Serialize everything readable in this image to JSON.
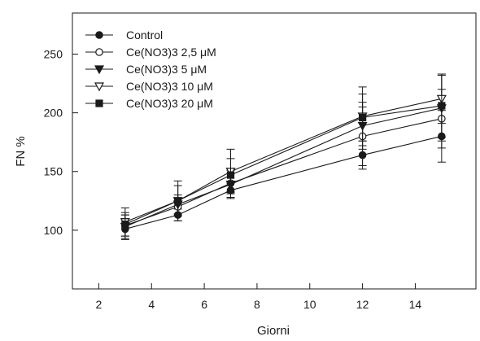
{
  "chart_data": {
    "type": "line",
    "title": "",
    "xlabel": "Giorni",
    "ylabel": "FN %",
    "xlim": [
      1,
      16.3
    ],
    "ylim": [
      50,
      285
    ],
    "xticks": [
      2,
      4,
      6,
      8,
      10,
      12,
      14
    ],
    "yticks": [
      100,
      150,
      200,
      250
    ],
    "xtick_labels": [
      "2",
      "4",
      "6",
      "8",
      "10",
      "12",
      "14"
    ],
    "ytick_labels": [
      "100",
      "150",
      "200",
      "250"
    ],
    "grid": false,
    "legend_position": "top-left",
    "x": [
      3,
      5,
      7,
      12,
      15
    ],
    "series": [
      {
        "name": "Control",
        "marker": "filled-circle",
        "values": [
          101,
          113,
          134,
          164,
          180
        ],
        "errors": [
          9,
          5,
          6,
          12,
          22
        ]
      },
      {
        "name": "Ce(NO3)3 2,5 μM",
        "marker": "open-circle",
        "values": [
          104,
          120,
          140,
          180,
          195
        ],
        "errors": [
          9,
          7,
          8,
          25,
          25
        ]
      },
      {
        "name": "Ce(NO3)3  5 μM",
        "marker": "filled-triangle-down",
        "values": [
          103,
          122,
          139,
          189,
          204
        ],
        "errors": [
          10,
          8,
          12,
          20,
          28
        ]
      },
      {
        "name": "Ce(NO3)3 10 μM",
        "marker": "open-triangle-down",
        "values": [
          107,
          125,
          150,
          197,
          212
        ],
        "errors": [
          12,
          17,
          19,
          25,
          21
        ]
      },
      {
        "name": "Ce(NO3)3 20 μM",
        "marker": "filled-square",
        "values": [
          105,
          125,
          147,
          196,
          206
        ],
        "errors": [
          10,
          13,
          14,
          20,
          27
        ]
      }
    ]
  }
}
